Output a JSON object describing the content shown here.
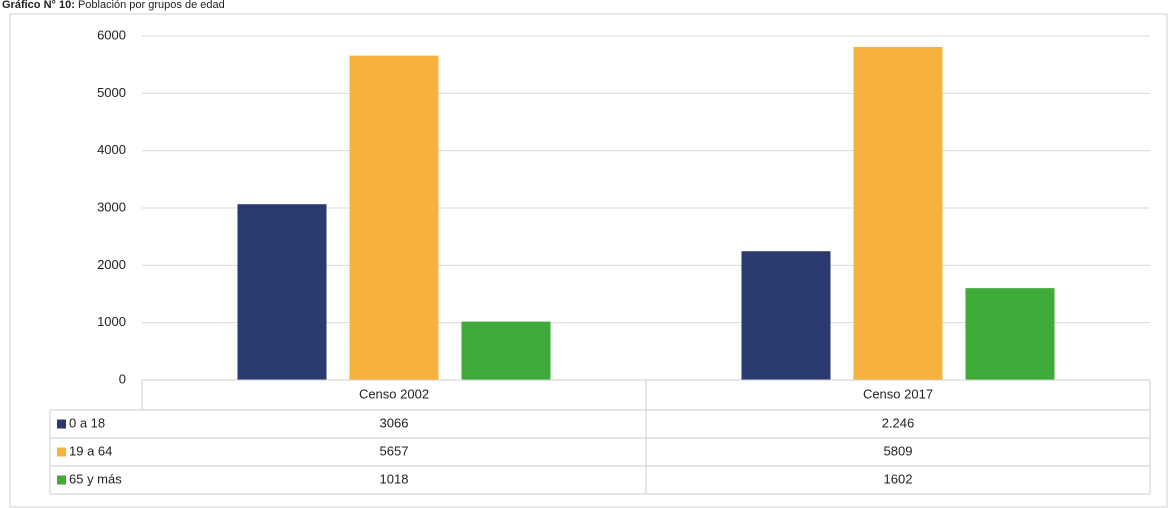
{
  "chart_data": {
    "type": "bar",
    "title_label": "Gráfico N° 10:",
    "title": "Población por grupos de edad",
    "categories": [
      "Censo 2002",
      "Censo 2017"
    ],
    "series": [
      {
        "name": "0 a 18",
        "color": "#283a6e",
        "values": [
          3066,
          2246
        ],
        "value_labels": [
          "3066",
          "2.246"
        ]
      },
      {
        "name": "19 a 64",
        "color": "#f6b13e",
        "values": [
          5657,
          5809
        ]
      },
      {
        "name": "65 y más",
        "color": "#3daa3a",
        "values": [
          1018,
          1602
        ]
      }
    ],
    "ylim": [
      0,
      6000
    ],
    "yticks": [
      0,
      1000,
      2000,
      3000,
      4000,
      5000,
      6000
    ],
    "grid": true,
    "legend": "table"
  }
}
